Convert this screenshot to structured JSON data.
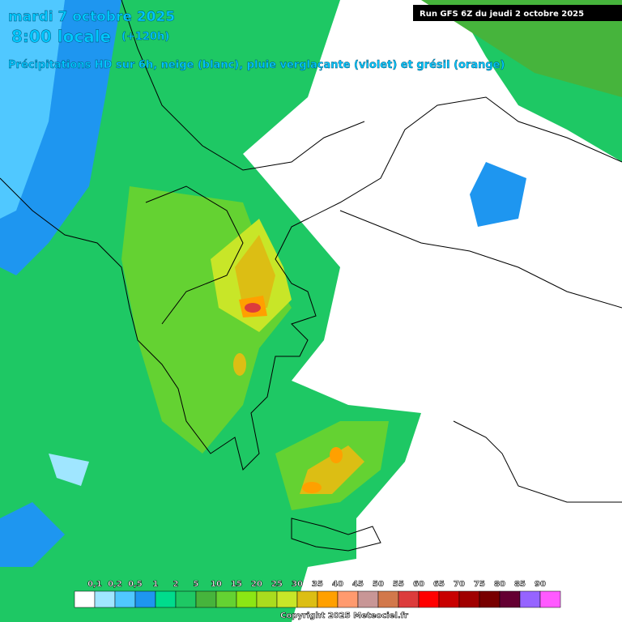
{
  "header": {
    "date": "mardi 7 octobre 2025",
    "time": "8:00 locale",
    "lead": "(+120h)",
    "subtitle": "Précipitations HD sur 6h, neige (blanc), pluie verglaçante (violet) et grésil (orange)"
  },
  "run": "Run GFS 6Z du jeudi 2 octobre 2025",
  "legend": {
    "labels": [
      "0,1",
      "0,2",
      "0,5",
      "1",
      "2",
      "5",
      "10",
      "15",
      "20",
      "25",
      "30",
      "35",
      "40",
      "45",
      "50",
      "55",
      "60",
      "65",
      "70",
      "75",
      "80",
      "85",
      "90"
    ],
    "colors": [
      "#ffffff",
      "#a0e6ff",
      "#50c8ff",
      "#1e96f0",
      "#00dc8c",
      "#1ec864",
      "#46b43c",
      "#64d232",
      "#8ce614",
      "#aadc1e",
      "#c8e628",
      "#dcbe14",
      "#ffa000",
      "#ff9a6e",
      "#c89696",
      "#d2784b",
      "#dc3c3c",
      "#ff0000",
      "#c80000",
      "#a00000",
      "#780000",
      "#640032",
      "#9664ff",
      "#ff5aff"
    ]
  },
  "copyright": "Copyright 2025 Meteociel.fr"
}
